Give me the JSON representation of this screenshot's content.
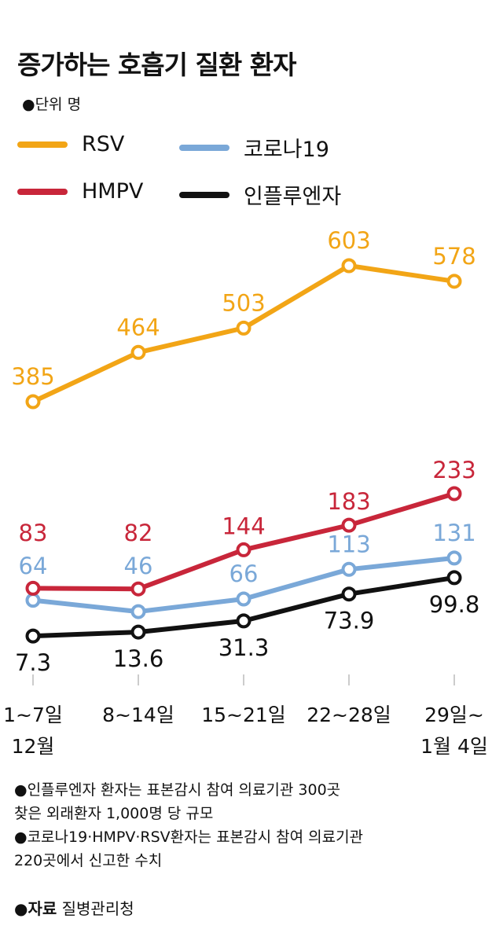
{
  "title": "증가하는 호흡기 질환 환자",
  "unit": "●단위 명",
  "chart_data": {
    "type": "line",
    "title": "증가하는 호흡기 질환 환자",
    "categories": [
      "1~7일\n12월",
      "8~14일",
      "15~21일",
      "22~28일",
      "29일~\n1월 4일"
    ],
    "category_lines": [
      [
        "1~7일",
        "12월"
      ],
      [
        "8~14일"
      ],
      [
        "15~21일"
      ],
      [
        "22~28일"
      ],
      [
        "29일~",
        "1월 4일"
      ]
    ],
    "series": [
      {
        "name": "RSV",
        "color": "#f2a516",
        "values": [
          385,
          464,
          503,
          603,
          578
        ]
      },
      {
        "name": "HMPV",
        "color": "#c8263a",
        "values": [
          83,
          82,
          144,
          183,
          233
        ]
      },
      {
        "name": "코로나19",
        "color": "#7aa8d8",
        "values": [
          64,
          46,
          66,
          113,
          131
        ]
      },
      {
        "name": "인플루엔자",
        "color": "#111111",
        "values": [
          7.3,
          13.6,
          31.3,
          73.9,
          99.8
        ]
      }
    ]
  },
  "legend": [
    {
      "label": "RSV",
      "color": "#f2a516"
    },
    {
      "label": "코로나19",
      "color": "#7aa8d8"
    },
    {
      "label": "HMPV",
      "color": "#c8263a"
    },
    {
      "label": "인플루엔자",
      "color": "#111111"
    }
  ],
  "notes": [
    "●인플루엔자 환자는 표본감시 참여 의료기관 300곳",
    "찾은 외래환자 1,000명 당 규모",
    "●코로나19·HMPV·RSV환자는 표본감시 참여 의료기관",
    "220곳에서 신고한 수치"
  ],
  "source": {
    "label": "●자료",
    "text": " 질병관리청"
  }
}
